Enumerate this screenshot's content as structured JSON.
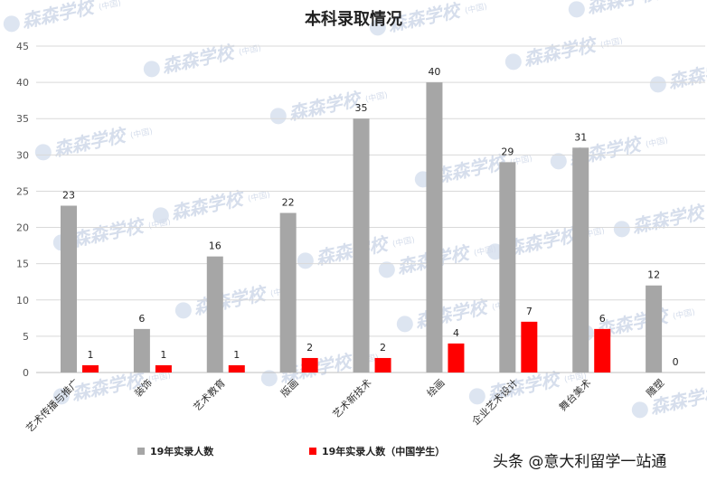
{
  "chart_data": {
    "type": "bar",
    "title": "本科录取情况",
    "categories": [
      "艺术传播与推广",
      "装饰",
      "艺术教育",
      "版画",
      "艺术新技术",
      "绘画",
      "企业艺术设计",
      "舞台美术",
      "雕塑"
    ],
    "series": [
      {
        "name": "19年实录人数",
        "color": "#a6a6a6",
        "values": [
          23,
          6,
          16,
          22,
          35,
          40,
          29,
          31,
          12
        ]
      },
      {
        "name": "19年实录人数（中国学生）",
        "color": "#ff0000",
        "values": [
          1,
          1,
          1,
          2,
          2,
          4,
          7,
          6,
          0
        ]
      }
    ],
    "ylim": [
      0,
      45
    ],
    "yticks": [
      0,
      5,
      10,
      15,
      20,
      25,
      30,
      35,
      40,
      45
    ],
    "grid": true,
    "legend_position": "bottom"
  },
  "watermark": {
    "text": "森森学校",
    "sub": "(中国)"
  },
  "footer": {
    "text": "头条 @意大利留学一站通"
  }
}
